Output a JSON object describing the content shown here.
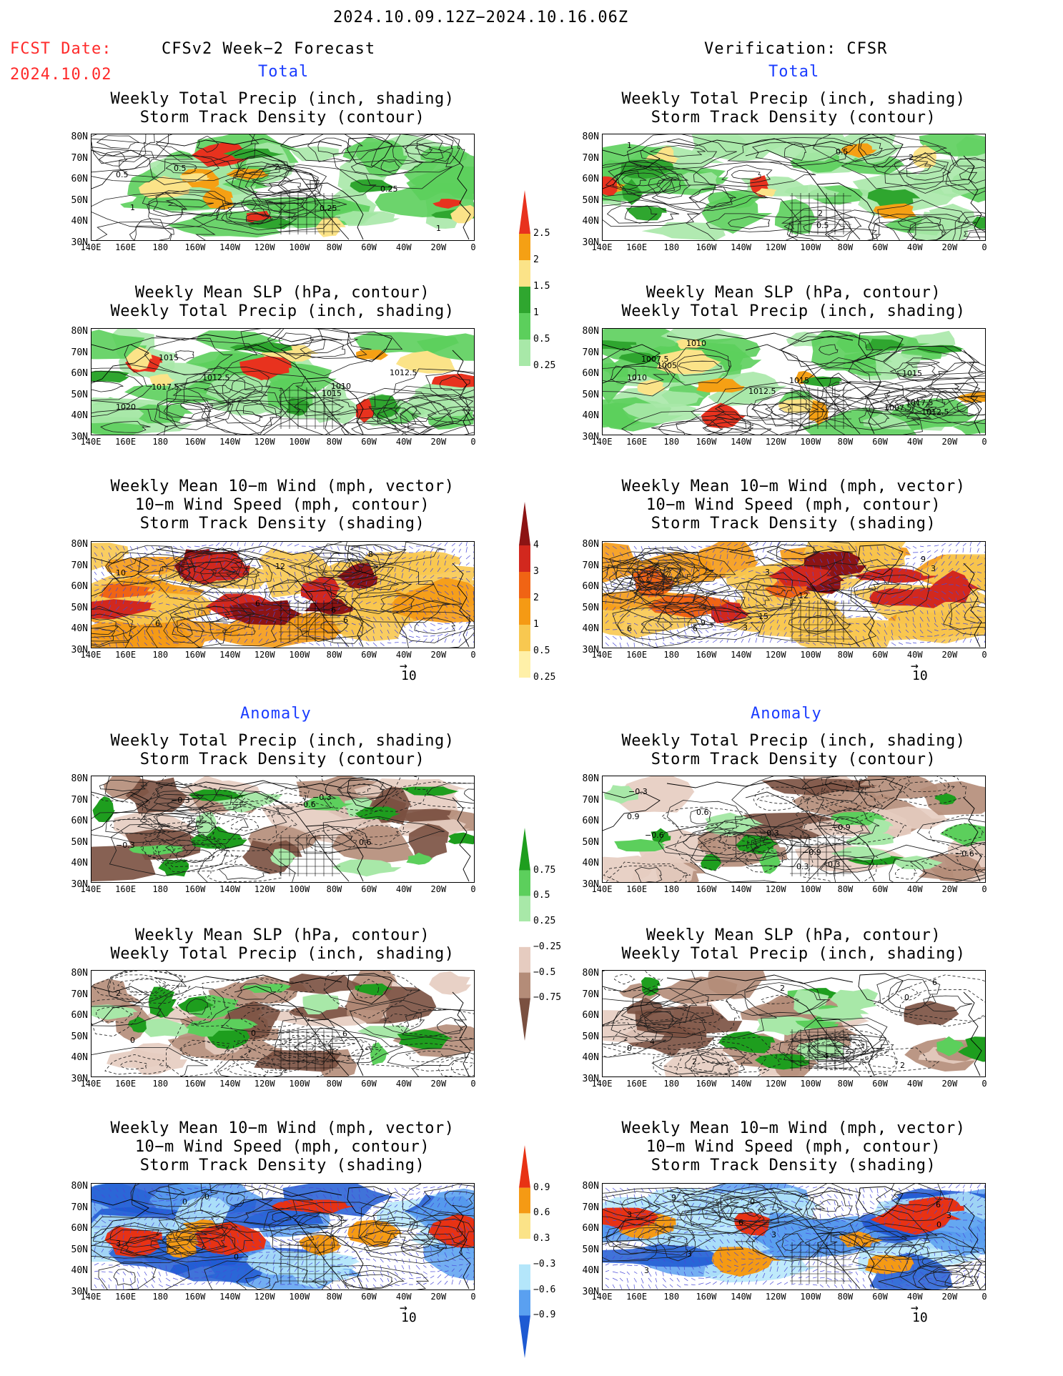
{
  "header": {
    "period": "2024.10.09.12Z−2024.10.16.06Z",
    "fcst_label": "FCST Date:",
    "fcst_date": "2024.10.02",
    "left_title": "CFSv2 Week−2 Forecast",
    "right_title": "Verification: CFSR"
  },
  "sections": {
    "total": "Total",
    "anomaly": "Anomaly"
  },
  "panel_titles": {
    "precip_storm": [
      "Weekly Total Precip (inch, shading)",
      "Storm Track Density (contour)"
    ],
    "slp_precip": [
      "Weekly Mean SLP (hPa, contour)",
      "Weekly Total Precip (inch, shading)"
    ],
    "wind": [
      "Weekly Mean 10−m Wind (mph, vector)",
      "10−m Wind Speed (mph, contour)",
      "Storm Track Density (shading)"
    ]
  },
  "axes": {
    "lat_labels": [
      "80N",
      "70N",
      "60N",
      "50N",
      "40N",
      "30N"
    ],
    "lon_labels": [
      "140E",
      "160E",
      "180",
      "160W",
      "140W",
      "120W",
      "100W",
      "80W",
      "60W",
      "40W",
      "20W",
      "0"
    ]
  },
  "vector_ref": {
    "arrow": "→",
    "value": "10"
  },
  "colorbars": {
    "total_precip": {
      "labels": [
        "2.5",
        "2",
        "1.5",
        "1",
        "0.5",
        "0.25"
      ],
      "colors": [
        "#e8321e",
        "#f5a014",
        "#fbe388",
        "#2fa62f",
        "#5ccf5c",
        "#a8e8a8"
      ]
    },
    "total_storm": {
      "labels": [
        "4",
        "3",
        "2",
        "1",
        "0.5",
        "0.25"
      ],
      "colors": [
        "#8c1414",
        "#d2281e",
        "#f06414",
        "#f59a14",
        "#f8c850",
        "#fff0a8"
      ]
    },
    "anom_precip": {
      "labels": [
        "0.75",
        "0.5",
        "0.25",
        "−0.25",
        "−0.5",
        "−0.75"
      ],
      "colors": [
        "#1e9e1e",
        "#5ccf5c",
        "#a8e8a8",
        "#ffffff",
        "#e6ccc0",
        "#b48c78",
        "#7a5040"
      ]
    },
    "anom_storm": {
      "labels": [
        "0.9",
        "0.6",
        "0.3",
        "−0.3",
        "−0.6",
        "−0.9"
      ],
      "colors": [
        "#e83214",
        "#f59a14",
        "#fbe388",
        "#ffffff",
        "#b4e6fa",
        "#5aa0f0",
        "#1e5ad2"
      ]
    }
  },
  "contour_labels": {
    "p1L": [
      "0.5",
      "0.25",
      "1",
      "0.25",
      "0.5",
      "1",
      "2"
    ],
    "p1R": [
      "1",
      "2",
      "0.5",
      "2",
      "0.5"
    ],
    "p2L": [
      "1020",
      "1017.5",
      "1012.5",
      "1015",
      "1010",
      "1012.5",
      "1015"
    ],
    "p2R": [
      "1010",
      "1012.5",
      "1015",
      "1012.5",
      "1007.5",
      "1010",
      "1007.5",
      "1015",
      "1017.5",
      "1005"
    ],
    "p3L": [
      "10",
      "6",
      "6",
      "6",
      "6",
      "12",
      "8"
    ],
    "p3R": [
      "6",
      "6",
      "3",
      "9",
      "12",
      "15",
      "3",
      "3",
      "9"
    ],
    "p4L": [
      "−0.3",
      "0.6",
      "−0.6",
      "−0.3",
      "−0.3"
    ],
    "p4R": [
      "0.9",
      "0.3",
      "0.6",
      "−0.3",
      "−0.6",
      "−0.9",
      "−0.6",
      "−0.3",
      "0.3",
      "−0.9"
    ],
    "p5L": [
      "2",
      "0",
      "0",
      "6"
    ],
    "p5R": [
      "0",
      "2",
      "4",
      "6",
      "2",
      "0",
      "2",
      "4"
    ],
    "p6L": [
      "3",
      "0",
      "0",
      "0"
    ],
    "p6R": [
      "3",
      "9",
      "6",
      "3",
      "0",
      "3",
      "6",
      "3",
      "0",
      "3"
    ]
  }
}
